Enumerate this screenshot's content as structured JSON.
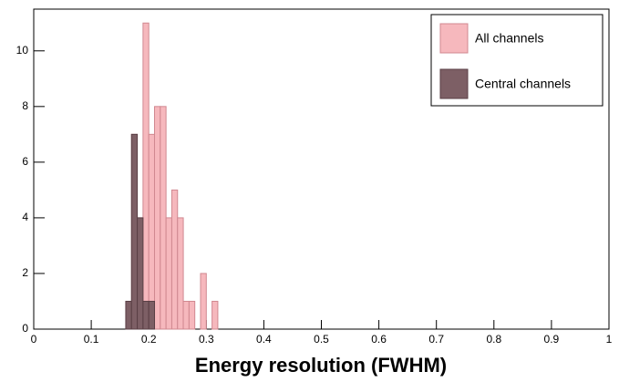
{
  "chart_data": {
    "type": "histogram",
    "x_label": "Energy resolution (FWHM)",
    "bins": [
      0.16,
      0.17,
      0.18,
      0.19,
      0.2,
      0.21,
      0.22,
      0.23,
      0.24,
      0.25,
      0.26,
      0.27,
      0.28,
      0.29,
      0.3,
      0.31,
      0.32
    ],
    "series": [
      {
        "name": "All channels",
        "color": "#f6b8bd",
        "edge": "#d08890",
        "values": [
          1,
          7,
          4,
          11,
          7,
          8,
          8,
          4,
          5,
          4,
          1,
          1,
          0,
          2,
          0,
          1
        ]
      },
      {
        "name": "Central channels",
        "color": "#7d5f65",
        "edge": "#5a3f45",
        "values": [
          1,
          7,
          4,
          1,
          1,
          0,
          0,
          0,
          0,
          0,
          0,
          0,
          0,
          0,
          0,
          0
        ]
      }
    ],
    "xlim": [
      0,
      1
    ],
    "ylim": [
      0,
      11.5
    ],
    "xticks": [
      0,
      0.1,
      0.2,
      0.3,
      0.4,
      0.5,
      0.6,
      0.7,
      0.8,
      0.9,
      1
    ],
    "yticks": [
      0,
      2,
      4,
      6,
      8,
      10
    ],
    "legend": "top-right"
  }
}
